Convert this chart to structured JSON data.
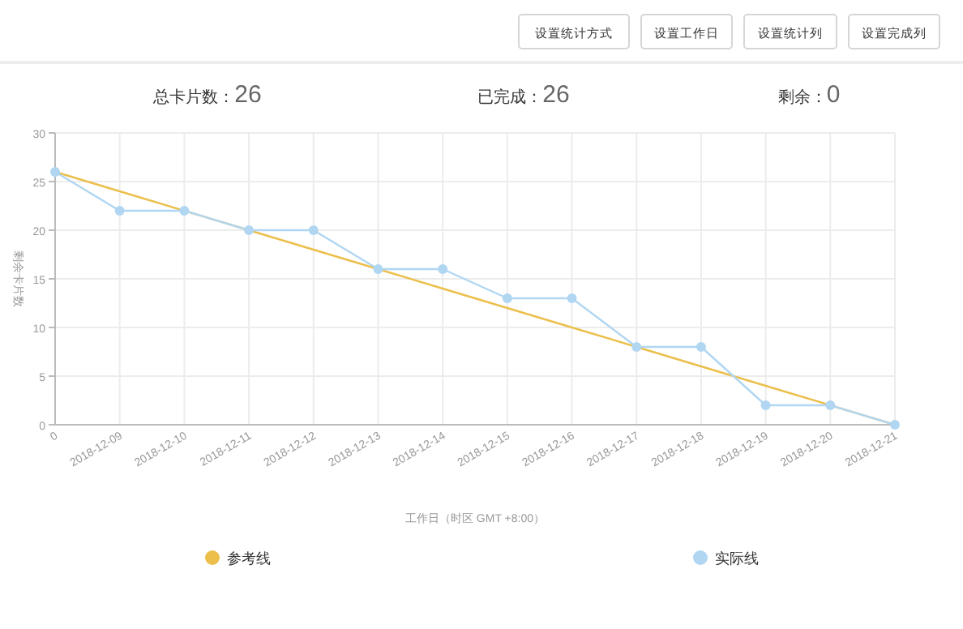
{
  "chart_data": {
    "type": "line",
    "ylabel": "剩余卡片数",
    "xlabel": "工作日（时区 GMT +8:00）",
    "annotations": [
      "设置统计方式",
      "设置工作日",
      "设置统计列",
      "设置完成列",
      "总卡片数：26",
      "已完成：26",
      "剩余：0"
    ],
    "categories": [
      "0",
      "2018-12-09",
      "2018-12-10",
      "2018-12-11",
      "2018-12-12",
      "2018-12-13",
      "2018-12-14",
      "2018-12-15",
      "2018-12-16",
      "2018-12-17",
      "2018-12-18",
      "2018-12-19",
      "2018-12-20",
      "2018-12-21"
    ],
    "series": [
      {
        "name": "参考线",
        "color": "#ecbf4c",
        "marker": "none",
        "values": [
          26,
          24,
          22,
          20,
          18,
          16,
          14,
          12,
          10,
          8,
          6,
          4,
          2,
          0
        ]
      },
      {
        "name": "实际线",
        "color": "#b0d6f2",
        "marker": "circle",
        "values": [
          26,
          22,
          22,
          20,
          20,
          16,
          16,
          13,
          13,
          8,
          8,
          2,
          2,
          0
        ]
      }
    ],
    "ylim": [
      0,
      30
    ],
    "yticks": [
      0,
      5,
      10,
      15,
      20,
      25,
      30
    ],
    "grid": true,
    "legend": "bottom"
  }
}
